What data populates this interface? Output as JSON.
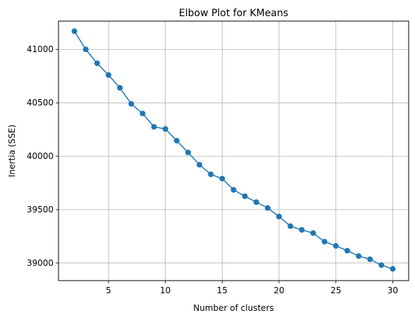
{
  "chart_data": {
    "type": "line",
    "title": "Elbow Plot for KMeans",
    "xlabel": "Number of clusters",
    "ylabel": "Inertia (SSE)",
    "xlim": [
      0.6,
      31.4
    ],
    "ylim": [
      38835,
      41265
    ],
    "xticks": [
      5,
      10,
      15,
      20,
      25,
      30
    ],
    "yticks": [
      39000,
      39500,
      40000,
      40500,
      41000
    ],
    "grid": true,
    "marker": "circle",
    "series": [
      {
        "color": "#1f77b4",
        "x": [
          2,
          3,
          4,
          5,
          6,
          7,
          8,
          9,
          10,
          11,
          12,
          13,
          14,
          15,
          16,
          17,
          18,
          19,
          20,
          21,
          22,
          23,
          24,
          25,
          26,
          27,
          28,
          29,
          30
        ],
        "y": [
          41170,
          41000,
          40870,
          40760,
          40640,
          40490,
          40400,
          40275,
          40255,
          40145,
          40035,
          39920,
          39830,
          39790,
          39685,
          39625,
          39570,
          39515,
          39435,
          39345,
          39310,
          39280,
          39200,
          39160,
          39115,
          39065,
          39035,
          38980,
          38945
        ]
      }
    ]
  }
}
